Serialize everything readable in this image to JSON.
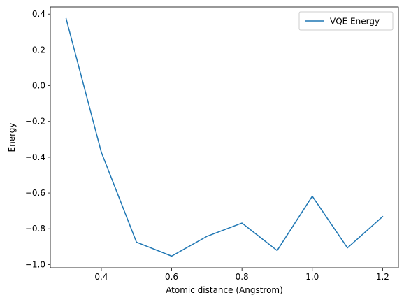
{
  "chart_data": {
    "type": "line",
    "title": "",
    "xlabel": "Atomic distance (Angstrom)",
    "ylabel": "Energy",
    "xlim": [
      0.255,
      1.245
    ],
    "ylim": [
      -1.018,
      0.44
    ],
    "x_ticks": [
      0.4,
      0.6,
      0.8,
      1.0,
      1.2
    ],
    "x_tick_labels": [
      "0.4",
      "0.6",
      "0.8",
      "1.0",
      "1.2"
    ],
    "y_ticks": [
      0.4,
      0.2,
      0.0,
      -0.2,
      -0.4,
      -0.6,
      -0.8,
      -1.0
    ],
    "y_tick_labels": [
      "0.4",
      "0.2",
      "0.0",
      "−0.2",
      "−0.4",
      "−0.6",
      "−0.8",
      "−1.0"
    ],
    "grid": false,
    "legend_position": "upper-right",
    "x": [
      0.3,
      0.4,
      0.5,
      0.6,
      0.7,
      0.8,
      0.9,
      1.0,
      1.1,
      1.2
    ],
    "series": [
      {
        "name": "VQE Energy",
        "color": "#1f77b4",
        "values": [
          0.375,
          -0.372,
          -0.875,
          -0.953,
          -0.843,
          -0.768,
          -0.922,
          -0.618,
          -0.907,
          -0.732
        ]
      }
    ]
  }
}
